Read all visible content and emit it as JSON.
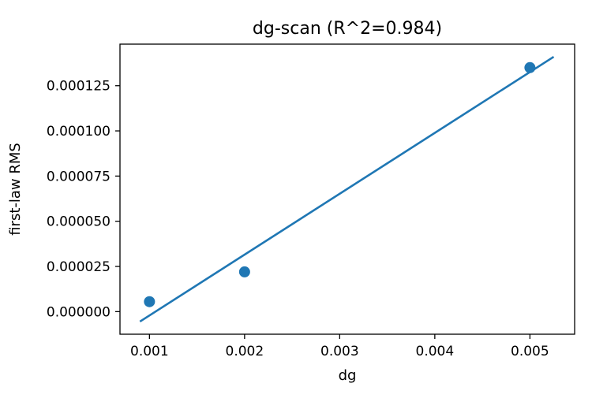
{
  "chart_data": {
    "type": "scatter",
    "title": "dg-scan (R^2=0.984)",
    "xlabel": "dg",
    "ylabel": "first-law RMS",
    "xlim": [
      0.00069,
      0.00547
    ],
    "ylim": [
      -1.25e-05,
      0.000148
    ],
    "x_ticks": [
      0.001,
      0.002,
      0.003,
      0.004,
      0.005
    ],
    "x_tick_labels": [
      "0.001",
      "0.002",
      "0.003",
      "0.004",
      "0.005"
    ],
    "y_ticks": [
      0,
      2.5e-05,
      5e-05,
      7.5e-05,
      0.0001,
      0.000125
    ],
    "y_tick_labels": [
      "0.000000",
      "0.000025",
      "0.000050",
      "0.000075",
      "0.000100",
      "0.000125"
    ],
    "grid": false,
    "points": {
      "x": [
        0.001,
        0.002,
        0.005
      ],
      "y": [
        5.5e-06,
        2.2e-05,
        0.000135
      ],
      "color": "#1f77b4"
    },
    "fit_line": {
      "x": [
        0.0009,
        0.00525
      ],
      "y": [
        -5.5e-06,
        0.000141
      ],
      "color": "#1f77b4"
    }
  }
}
